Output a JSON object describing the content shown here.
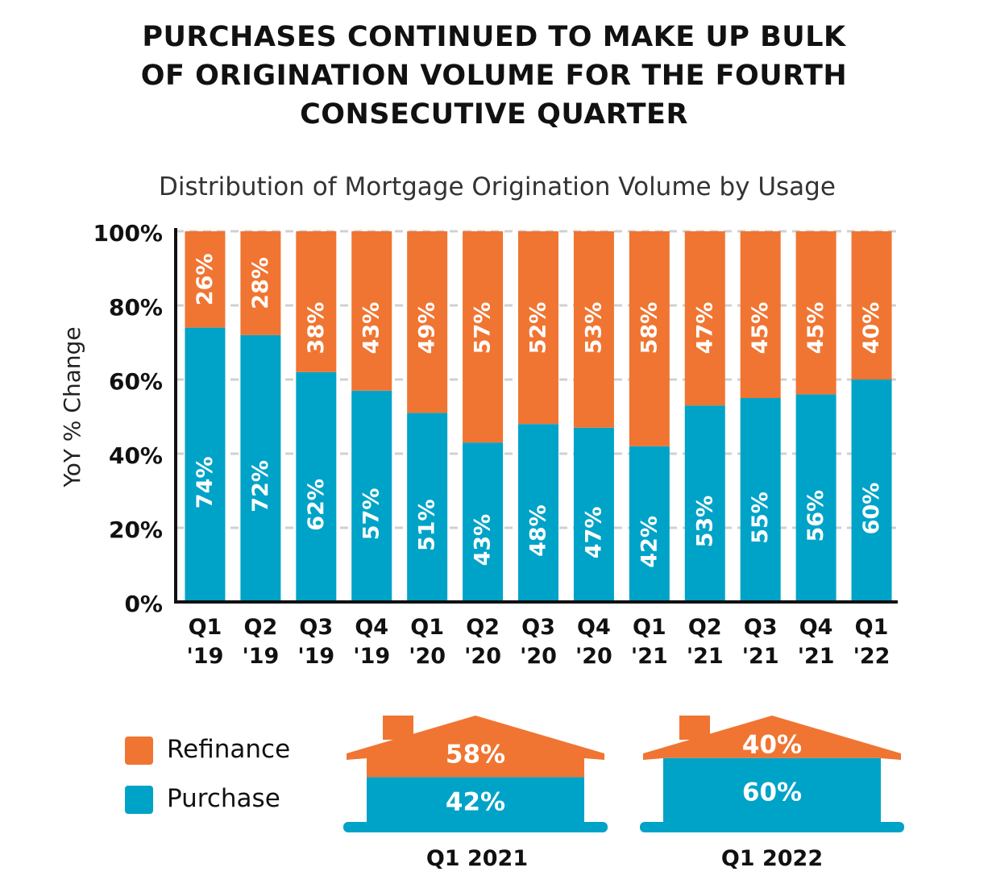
{
  "title_lines": [
    "PURCHASES CONTINUED TO MAKE UP BULK",
    "OF ORIGINATION VOLUME FOR THE FOURTH",
    "CONSECUTIVE QUARTER"
  ],
  "colors": {
    "refinance": "#F07532",
    "purchase": "#00A3C8",
    "axis": "#111111",
    "grid": "#D0D0D0"
  },
  "chart_data": {
    "type": "bar",
    "stacked": true,
    "title": "Distribution of Mortgage Origination Volume by Usage",
    "ylabel": "YoY % Change",
    "xlabel": "",
    "ylim": [
      0,
      100
    ],
    "yticks": [
      "0%",
      "20%",
      "40%",
      "60%",
      "80%",
      "100%"
    ],
    "categories": [
      [
        "Q1",
        "'19"
      ],
      [
        "Q2",
        "'19"
      ],
      [
        "Q3",
        "'19"
      ],
      [
        "Q4",
        "'19"
      ],
      [
        "Q1",
        "'20"
      ],
      [
        "Q2",
        "'20"
      ],
      [
        "Q3",
        "'20"
      ],
      [
        "Q4",
        "'20"
      ],
      [
        "Q1",
        "'21"
      ],
      [
        "Q2",
        "'21"
      ],
      [
        "Q3",
        "'21"
      ],
      [
        "Q4",
        "'21"
      ],
      [
        "Q1",
        "'22"
      ]
    ],
    "series": [
      {
        "name": "Purchase",
        "values": [
          74,
          72,
          62,
          57,
          51,
          43,
          48,
          47,
          42,
          53,
          55,
          56,
          60
        ],
        "labels": [
          "74%",
          "72%",
          "62%",
          "57%",
          "51%",
          "43%",
          "48%",
          "47%",
          "42%",
          "53%",
          "55%",
          "56%",
          "60%"
        ]
      },
      {
        "name": "Refinance",
        "values": [
          26,
          28,
          38,
          43,
          49,
          57,
          52,
          53,
          58,
          47,
          45,
          45,
          40
        ],
        "labels": [
          "26%",
          "28%",
          "38%",
          "43%",
          "49%",
          "57%",
          "52%",
          "53%",
          "58%",
          "47%",
          "45%",
          "45%",
          "40%"
        ]
      }
    ],
    "grid": true,
    "legend_position": "bottom-left"
  },
  "legend": [
    {
      "label": "Refinance",
      "color": "#F07532"
    },
    {
      "label": "Purchase",
      "color": "#00A3C8"
    }
  ],
  "houses": [
    {
      "label": "Q1 2021",
      "refinance": 58,
      "purchase": 42,
      "refinance_label": "58%",
      "purchase_label": "42%"
    },
    {
      "label": "Q1 2022",
      "refinance": 40,
      "purchase": 60,
      "refinance_label": "40%",
      "purchase_label": "60%"
    }
  ]
}
